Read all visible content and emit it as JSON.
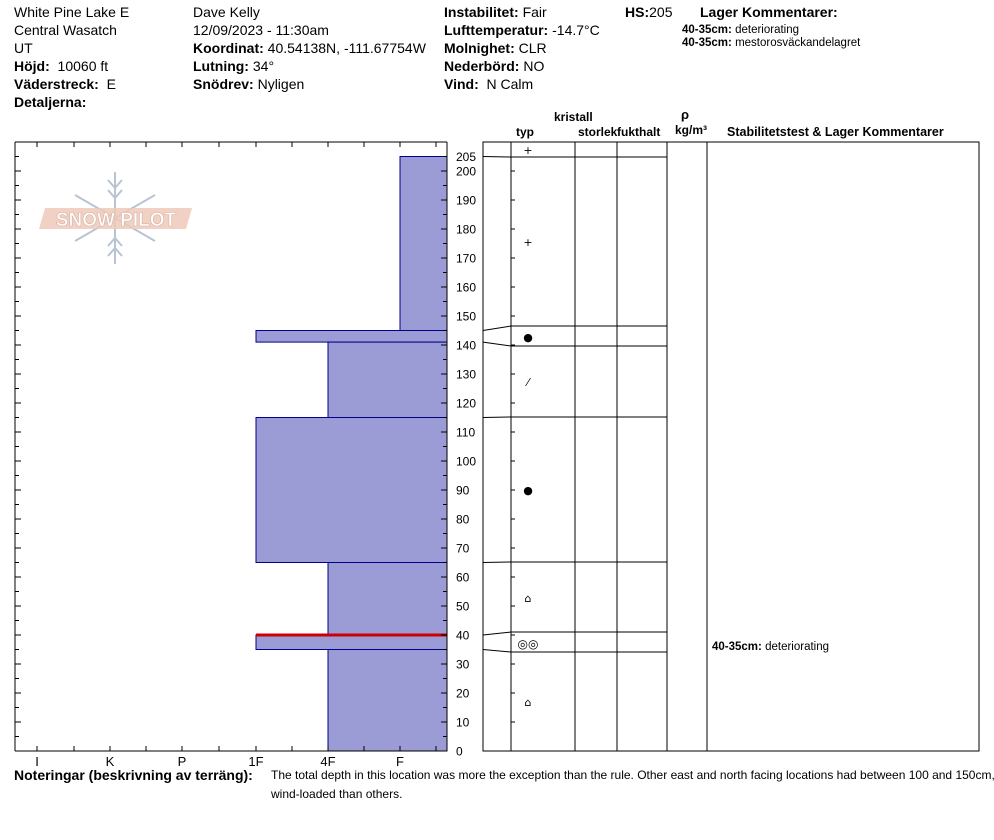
{
  "header": {
    "location": "White Pine Lake E",
    "range": "Central Wasatch",
    "state": "UT",
    "elevation_label": "Höjd:",
    "elevation": "10060 ft",
    "aspect_label": "Väderstreck:",
    "aspect": "E",
    "details_label": "Detaljerna:",
    "observer": "Dave Kelly",
    "datetime": "12/09/2023 - 11:30am",
    "coord_label": "Koordinat:",
    "coord": "40.54138N, -111.67754W",
    "slope_label": "Lutning:",
    "slope": "34°",
    "wind_loading_label": "Snödrev:",
    "wind_loading": "Nyligen",
    "instability_label": "Instabilitet:",
    "instability": "Fair",
    "air_temp_label": "Lufttemperatur:",
    "air_temp": "-14.7°C",
    "sky_label": "Molnighet:",
    "sky": "CLR",
    "precip_label": "Nederbörd:",
    "precip": "NO",
    "wind_label": "Vind:",
    "wind": "N Calm",
    "hs_label": "HS:",
    "hs": "205",
    "layer_comments_title": "Lager Kommentarer:",
    "layer_comments": [
      {
        "depth": "40-35cm:",
        "text": "deteriorating"
      },
      {
        "depth": "40-35cm:",
        "text": "mestorosväckandelagret"
      }
    ]
  },
  "logo": {
    "text": "SNOW PILOT"
  },
  "columns": {
    "crystal": "kristall",
    "type": "typ",
    "size": "storlek",
    "moisture": "fukthalt",
    "rho": "ρ",
    "density_unit": "kg/m³",
    "stability": "Stabilitetstest & Lager Kommentarer"
  },
  "stability_comments": [
    {
      "depth": "40-35cm:",
      "text": "deteriorating",
      "at_cm": 40
    }
  ],
  "notes": {
    "label": "Noteringar (beskrivning av terräng):",
    "line1": "The total depth in this location was more the exception than the rule.  Other east and north facing locations had between 100 and 150cm, depending on which were more",
    "line2": "wind-loaded than others."
  },
  "colors": {
    "fill": "#9b9bd6",
    "edge": "#00008b",
    "critical": "#cc0000"
  },
  "chart_data": {
    "type": "bar",
    "title": "",
    "xlabel": "",
    "ylabel": "",
    "hardness_categories": [
      "I",
      "K",
      "P",
      "1F",
      "4F",
      "F"
    ],
    "ylim": [
      0,
      205
    ],
    "y_ticks": [
      0,
      10,
      20,
      30,
      40,
      50,
      60,
      70,
      80,
      90,
      100,
      110,
      120,
      130,
      140,
      150,
      160,
      170,
      180,
      190,
      200,
      205
    ],
    "layers": [
      {
        "top": 205,
        "bottom": 145,
        "hardness": "F",
        "hardness_value": 0.5,
        "grain": "+"
      },
      {
        "top": 145,
        "bottom": 141,
        "hardness": "1F",
        "hardness_value": 2.5,
        "grain": "●"
      },
      {
        "top": 141,
        "bottom": 115,
        "hardness": "4F",
        "hardness_value": 1.5,
        "grain": "⁄"
      },
      {
        "top": 115,
        "bottom": 65,
        "hardness": "1F",
        "hardness_value": 2.5,
        "grain": "●"
      },
      {
        "top": 65,
        "bottom": 40,
        "hardness": "4F",
        "hardness_value": 1.5,
        "grain": "⌂"
      },
      {
        "top": 40,
        "bottom": 35,
        "hardness": "1F",
        "hardness_value": 2.5,
        "grain": "◎◎"
      },
      {
        "top": 35,
        "bottom": 0,
        "hardness": "4F",
        "hardness_value": 1.5,
        "grain": "⌂"
      }
    ],
    "critical_layer_cm": 40,
    "grain_symbol_positions_cm": [
      {
        "cm": 205,
        "sym": "+"
      },
      {
        "cm": 175,
        "sym": "+"
      },
      {
        "cm": 143,
        "sym": "●"
      },
      {
        "cm": 127,
        "sym": "⁄"
      },
      {
        "cm": 90,
        "sym": "●"
      },
      {
        "cm": 53,
        "sym": "⌂"
      },
      {
        "cm": 37.5,
        "sym": "◎◎"
      },
      {
        "cm": 17,
        "sym": "⌂"
      }
    ]
  }
}
